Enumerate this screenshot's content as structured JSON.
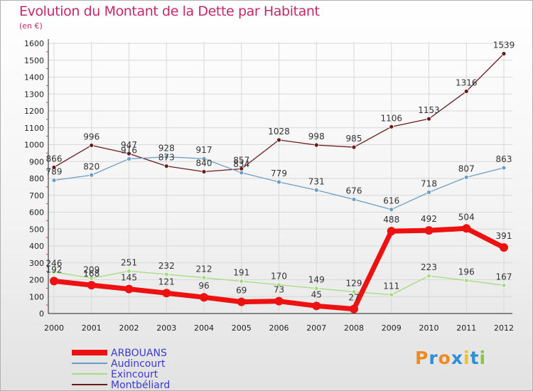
{
  "title": "Evolution du Montant de la Dette par Habitant",
  "unit": "(en €)",
  "logo": {
    "text": "Proxiti",
    "letter_colors": [
      "#f08a1e",
      "#2d8fd8",
      "#f08a1e",
      "#2d8fd8",
      "#f0c21e",
      "#2d8fd8",
      "#8cc63f"
    ]
  },
  "chart_data": {
    "type": "line",
    "x": [
      "2000",
      "2001",
      "2002",
      "2003",
      "2004",
      "2005",
      "2006",
      "2007",
      "2008",
      "2009",
      "2010",
      "2011",
      "2012"
    ],
    "ylim": [
      0,
      1600
    ],
    "yticks": [
      "0",
      "100",
      "200",
      "300",
      "400",
      "500",
      "600",
      "700",
      "800",
      "900",
      "1000",
      "1100",
      "1200",
      "1300",
      "1400",
      "1500",
      "1600"
    ],
    "grid": true,
    "legend_position": "bottom-left",
    "series": [
      {
        "name": "Montbéliard",
        "color": "#6b1a1a",
        "values": [
          866,
          996,
          947,
          873,
          840,
          857,
          1028,
          998,
          985,
          1106,
          1153,
          1316,
          1539
        ]
      },
      {
        "name": "Audincourt",
        "color": "#6a9ec6",
        "values": [
          789,
          820,
          916,
          928,
          917,
          834,
          779,
          731,
          676,
          616,
          718,
          807,
          863
        ]
      },
      {
        "name": "Exincourt",
        "color": "#a2dc7e",
        "values": [
          246,
          209,
          251,
          232,
          212,
          191,
          170,
          149,
          129,
          111,
          223,
          196,
          167
        ]
      },
      {
        "name": "ARBOUANS",
        "color": "#ee1111",
        "values": [
          192,
          168,
          145,
          121,
          96,
          69,
          73,
          45,
          27,
          488,
          492,
          504,
          391
        ]
      }
    ],
    "legend_order": [
      "ARBOUANS",
      "Audincourt",
      "Exincourt",
      "Montbéliard"
    ]
  }
}
